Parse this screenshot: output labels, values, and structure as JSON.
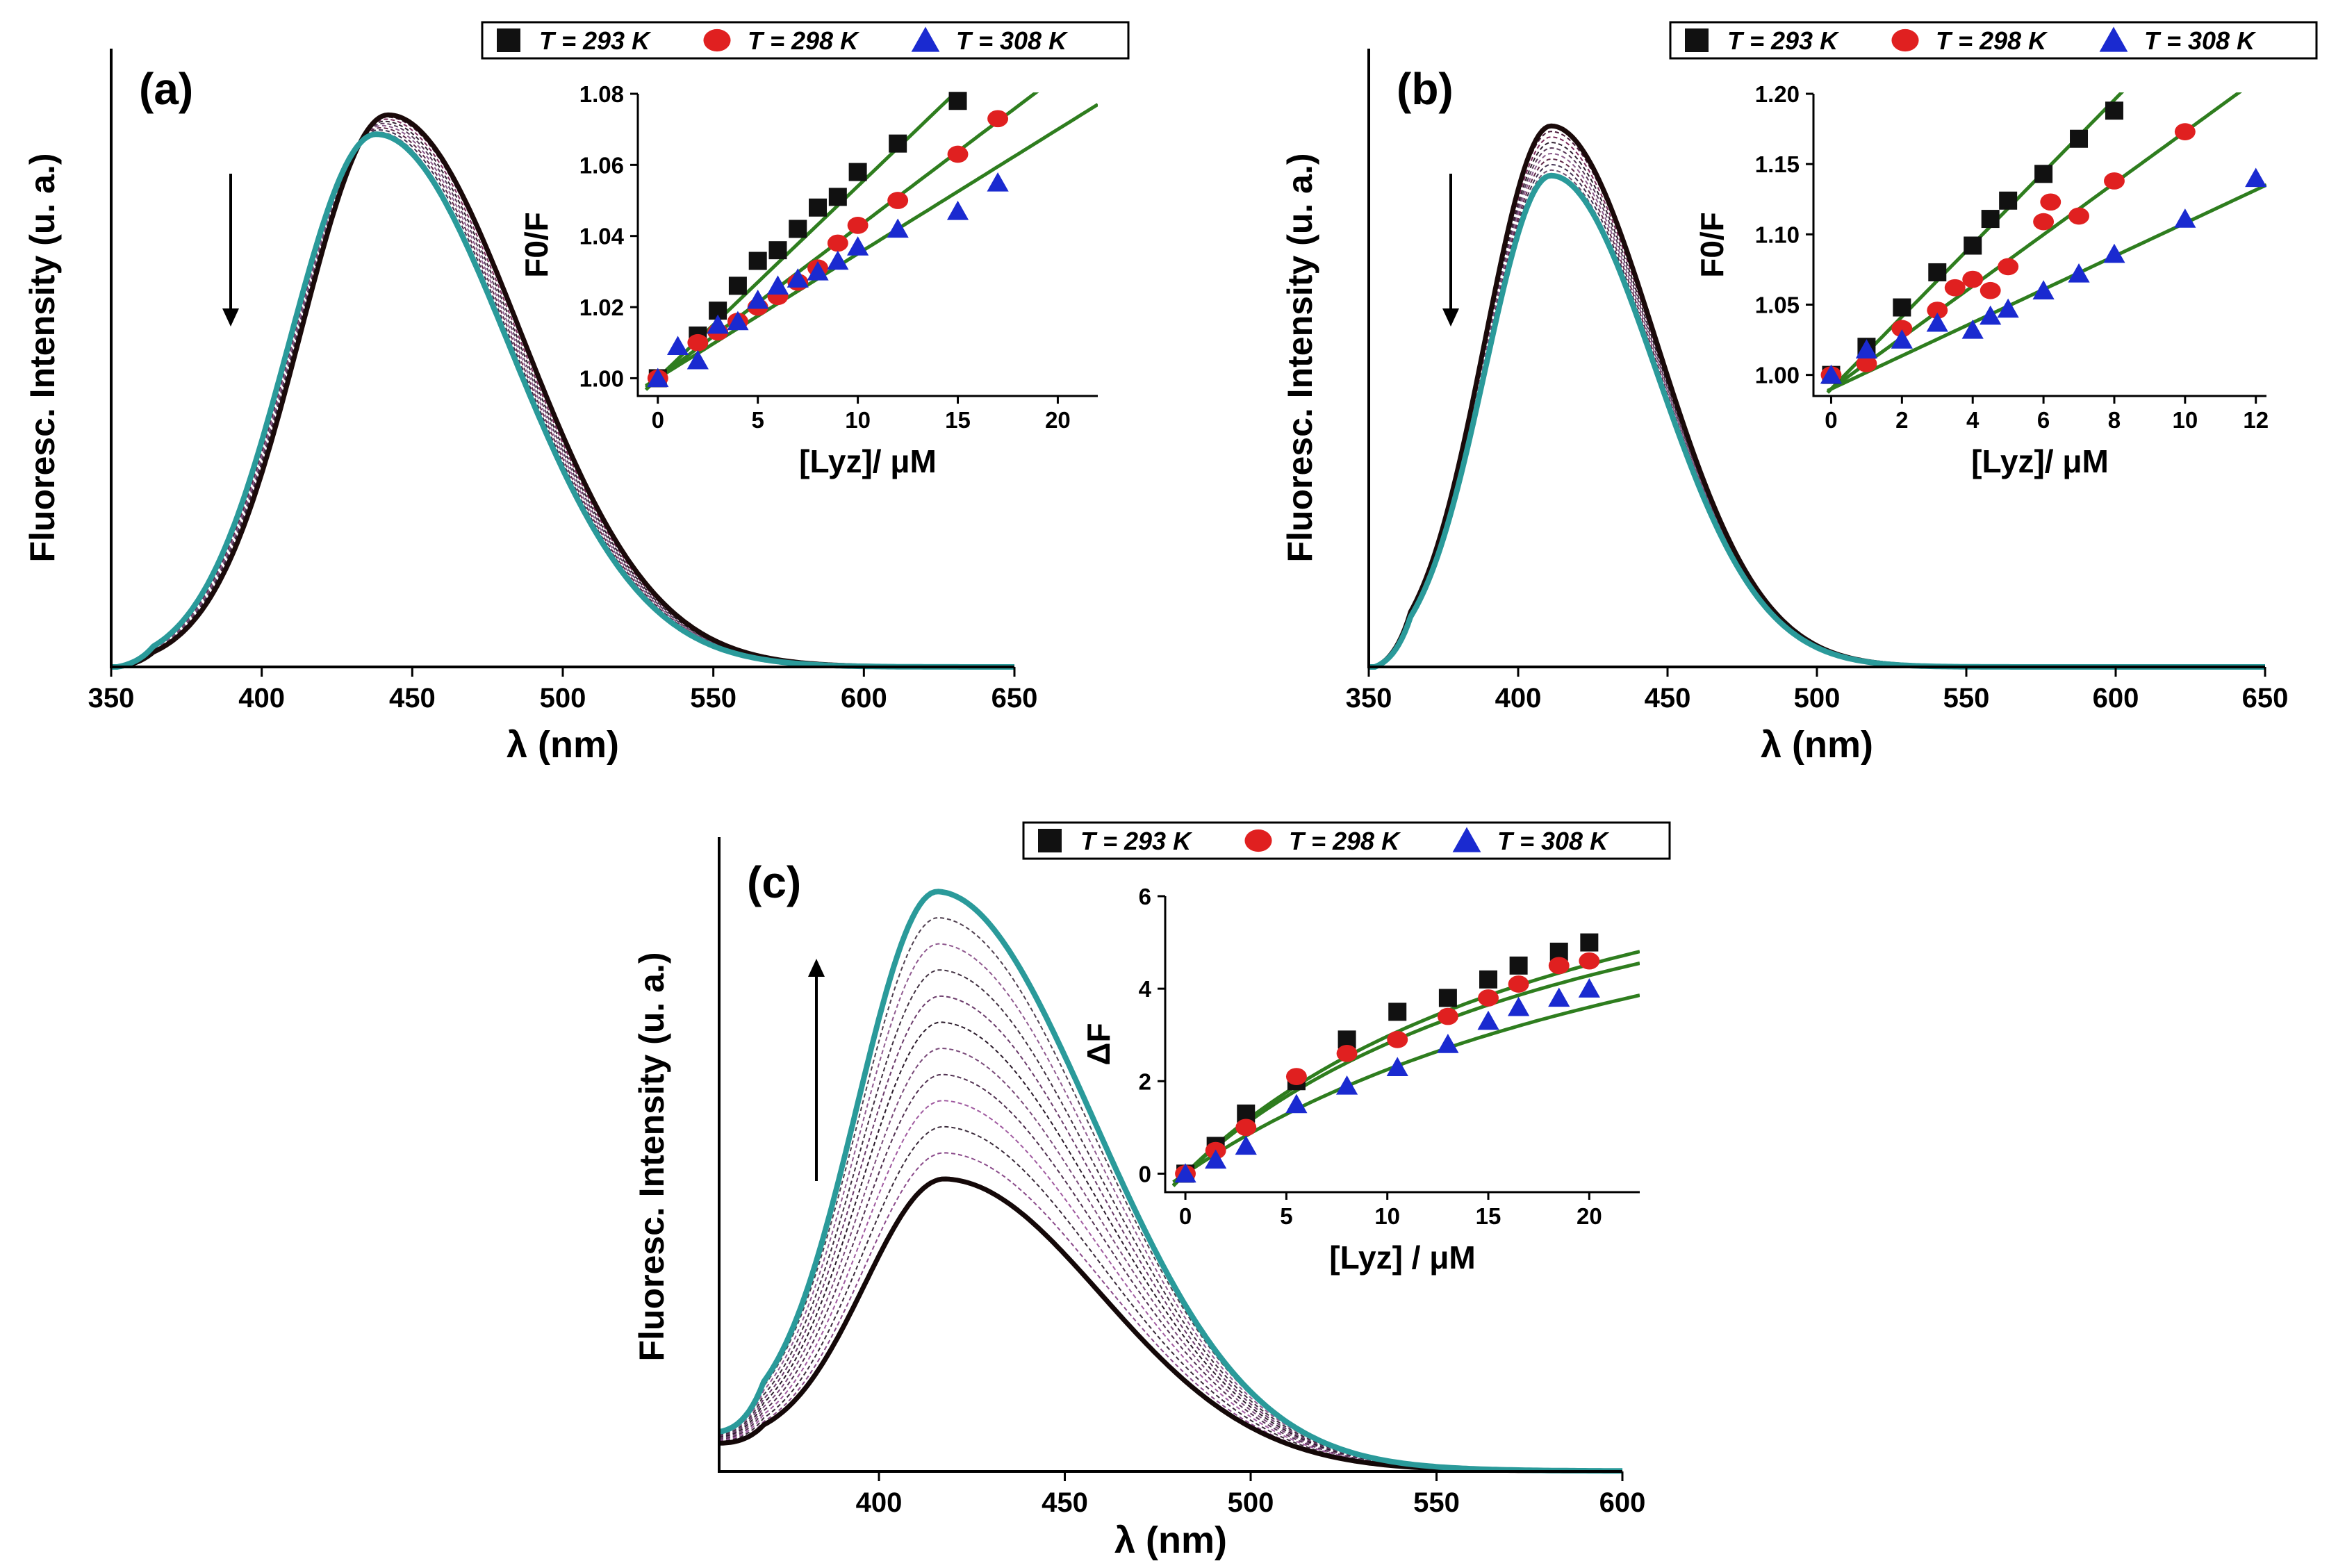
{
  "chart_data": [
    {
      "panel": "(a)",
      "type": "line",
      "xlabel": "λ (nm)",
      "ylabel": "Fluoresc. Intensity (u. a.)",
      "xlim": [
        350,
        650
      ],
      "xticks": [
        350,
        400,
        450,
        500,
        550,
        600,
        650
      ],
      "ylim": [
        0,
        1.12
      ],
      "arrow": "down",
      "spectra": {
        "x_start": 350,
        "x_end": 650,
        "peak_nm": 442,
        "sigma_left": 29,
        "sigma_right": 44,
        "onset_nm": 352,
        "first_max": 1.0,
        "last_max": 0.965,
        "peak_shift_last": -4,
        "count": 10,
        "first_color": "#1a0a0a",
        "last_color": "#2a9a9a",
        "mid_colors": [
          "#4a1a3a",
          "#7a2a5a",
          "#302030",
          "#5a3a5a",
          "#8a5a8a",
          "#602a4a",
          "#403050",
          "#705070"
        ]
      },
      "inset": {
        "xlabel": "[Lyz]/ μM",
        "ylabel": "F0/F",
        "xlim": [
          -1,
          22
        ],
        "ylim": [
          0.995,
          1.08
        ],
        "xticks": [
          0,
          5,
          10,
          15,
          20
        ],
        "yticks": [
          1.0,
          1.02,
          1.04,
          1.06,
          1.08
        ],
        "ytick_labels": [
          "1.00",
          "1.02",
          "1.04",
          "1.06",
          "1.08"
        ],
        "series": [
          {
            "name": "T = 293 K",
            "marker": "square",
            "color": "#111111",
            "x": [
              0,
              2,
              3,
              4,
              5,
              6,
              7,
              8,
              9,
              10,
              12,
              15
            ],
            "y": [
              1.0,
              1.012,
              1.019,
              1.026,
              1.033,
              1.036,
              1.042,
              1.048,
              1.051,
              1.058,
              1.066,
              1.078
            ],
            "fit": [
              1.0,
              0.0054
            ]
          },
          {
            "name": "T = 298 K",
            "marker": "circle",
            "color": "#e02020",
            "x": [
              0,
              2,
              3,
              4,
              5,
              6,
              7,
              8,
              9,
              10,
              12,
              15,
              17
            ],
            "y": [
              1.0,
              1.01,
              1.013,
              1.016,
              1.02,
              1.023,
              1.027,
              1.031,
              1.038,
              1.043,
              1.05,
              1.063,
              1.073
            ],
            "fit": [
              1.0,
              0.00425
            ]
          },
          {
            "name": "T = 308 K",
            "marker": "triangle",
            "color": "#1a2ad0",
            "x": [
              0,
              1,
              2,
              3,
              4,
              5,
              6,
              7,
              8,
              9,
              10,
              12,
              15,
              17
            ],
            "y": [
              1.0,
              1.009,
              1.005,
              1.015,
              1.016,
              1.022,
              1.026,
              1.028,
              1.03,
              1.033,
              1.037,
              1.042,
              1.047,
              1.055
            ],
            "fit": [
              1.0,
              0.0035
            ]
          }
        ]
      }
    },
    {
      "panel": "(b)",
      "type": "line",
      "xlabel": "λ (nm)",
      "ylabel": "Fluoresc. Intensity (u. a.)",
      "xlim": [
        350,
        650
      ],
      "xticks": [
        350,
        400,
        450,
        500,
        550,
        600,
        650
      ],
      "ylim": [
        0,
        1.12
      ],
      "arrow": "down",
      "spectra": {
        "x_start": 350,
        "x_end": 650,
        "peak_nm": 411,
        "sigma_left": 22,
        "sigma_right": 35,
        "onset_nm": 352,
        "first_max": 0.98,
        "last_max": 0.89,
        "peak_shift_last": 0,
        "count": 10,
        "first_color": "#1a0a0a",
        "last_color": "#2a9a9a",
        "mid_colors": [
          "#4a1a3a",
          "#7a2a5a",
          "#302030",
          "#5a3a5a",
          "#8a5a8a",
          "#602a4a",
          "#403050",
          "#705070"
        ]
      },
      "inset": {
        "xlabel": "[Lyz]/ μM",
        "ylabel": "F0/F",
        "xlim": [
          -0.5,
          12.3
        ],
        "ylim": [
          0.985,
          1.2
        ],
        "xticks": [
          0,
          2,
          4,
          6,
          8,
          10,
          12
        ],
        "yticks": [
          1.0,
          1.05,
          1.1,
          1.15,
          1.2
        ],
        "ytick_labels": [
          "1.00",
          "1.05",
          "1.10",
          "1.15",
          "1.20"
        ],
        "series": [
          {
            "name": "T = 293 K",
            "marker": "square",
            "color": "#111111",
            "x": [
              0,
              1,
              2,
              3,
              4,
              4.5,
              5,
              6,
              7,
              8
            ],
            "y": [
              1.0,
              1.02,
              1.048,
              1.073,
              1.092,
              1.111,
              1.124,
              1.143,
              1.168,
              1.188
            ],
            "fit": [
              0.99,
              0.0257
            ]
          },
          {
            "name": "T = 298 K",
            "marker": "circle",
            "color": "#e02020",
            "x": [
              0,
              1,
              2,
              3,
              3.5,
              4,
              4.5,
              5,
              6,
              6.2,
              7,
              8,
              10
            ],
            "y": [
              1.0,
              1.008,
              1.033,
              1.046,
              1.062,
              1.068,
              1.06,
              1.077,
              1.109,
              1.123,
              1.113,
              1.138,
              1.173
            ],
            "fit": [
              0.99,
              0.0183
            ]
          },
          {
            "name": "T = 308 K",
            "marker": "triangle",
            "color": "#1a2ad0",
            "x": [
              0,
              1,
              2,
              3,
              4,
              4.5,
              5,
              6,
              7,
              8,
              10,
              12
            ],
            "y": [
              1.0,
              1.018,
              1.025,
              1.037,
              1.032,
              1.042,
              1.047,
              1.06,
              1.072,
              1.086,
              1.111,
              1.14
            ],
            "fit": [
              0.99,
              0.0118
            ]
          }
        ]
      }
    },
    {
      "panel": "(c)",
      "type": "line",
      "xlabel": "λ (nm)",
      "ylabel": "Fluoresc. Intensity (u. a.)",
      "xlim": [
        357,
        600
      ],
      "xticks": [
        400,
        450,
        500,
        550,
        600
      ],
      "ylim": [
        0,
        1.12
      ],
      "arrow": "up",
      "spectra": {
        "x_start": 357,
        "x_end": 600,
        "peak_nm": 418,
        "sigma_left": 22,
        "sigma_right": 42,
        "onset_nm": 357,
        "first_max": 0.5,
        "last_max": 1.0,
        "peak_shift_last": -2,
        "baseline_first": 0.05,
        "baseline_last": 0.07,
        "count": 12,
        "first_color": "#140808",
        "last_color": "#2a9a9a",
        "mid_colors": [
          "#8a4a8a",
          "#3a2a3a",
          "#a05aa0",
          "#503050",
          "#7a4a7a",
          "#2a1a2a",
          "#6a3a6a",
          "#403040",
          "#905a90",
          "#504050"
        ]
      },
      "inset": {
        "xlabel": "[Lyz] / μM",
        "ylabel": "ΔF",
        "xlim": [
          -1,
          22.5
        ],
        "ylim": [
          -0.4,
          6
        ],
        "xticks": [
          0,
          5,
          10,
          15,
          20
        ],
        "yticks": [
          0,
          2,
          4,
          6
        ],
        "ytick_labels": [
          "0",
          "2",
          "4",
          "6"
        ],
        "series": [
          {
            "name": "T = 293 K",
            "marker": "square",
            "color": "#111111",
            "x": [
              0,
              1.5,
              3,
              5.5,
              8,
              10.5,
              13,
              15,
              16.5,
              18.5,
              20
            ],
            "y": [
              0.0,
              0.6,
              1.3,
              2.0,
              2.9,
              3.5,
              3.8,
              4.2,
              4.5,
              4.8,
              5.0
            ],
            "fit_type": "saturation",
            "fit": [
              9.5,
              22.0
            ]
          },
          {
            "name": "T = 298 K",
            "marker": "circle",
            "color": "#e02020",
            "x": [
              0,
              1.5,
              3,
              5.5,
              8,
              10.5,
              13,
              15,
              16.5,
              18.5,
              20
            ],
            "y": [
              0.0,
              0.5,
              1.0,
              2.1,
              2.6,
              2.9,
              3.4,
              3.8,
              4.1,
              4.5,
              4.6
            ],
            "fit_type": "saturation",
            "fit": [
              9.0,
              22.0
            ]
          },
          {
            "name": "T = 308 K",
            "marker": "triangle",
            "color": "#1a2ad0",
            "x": [
              0,
              1.5,
              3,
              5.5,
              8,
              10.5,
              13,
              15,
              16.5,
              18.5,
              20
            ],
            "y": [
              0.0,
              0.3,
              0.6,
              1.5,
              1.9,
              2.3,
              2.8,
              3.3,
              3.6,
              3.8,
              4.0
            ],
            "fit_type": "saturation",
            "fit": [
              9.0,
              30.0
            ]
          }
        ]
      }
    }
  ],
  "legend": {
    "entries": [
      {
        "label": "T = 293 K",
        "marker": "square",
        "color": "#111111"
      },
      {
        "label": "T = 298 K",
        "marker": "circle",
        "color": "#e02020"
      },
      {
        "label": "T = 308 K",
        "marker": "triangle",
        "color": "#1a2ad0"
      }
    ]
  },
  "colors": {
    "fit_line": "#2e7d1e",
    "axis": "#000000"
  }
}
